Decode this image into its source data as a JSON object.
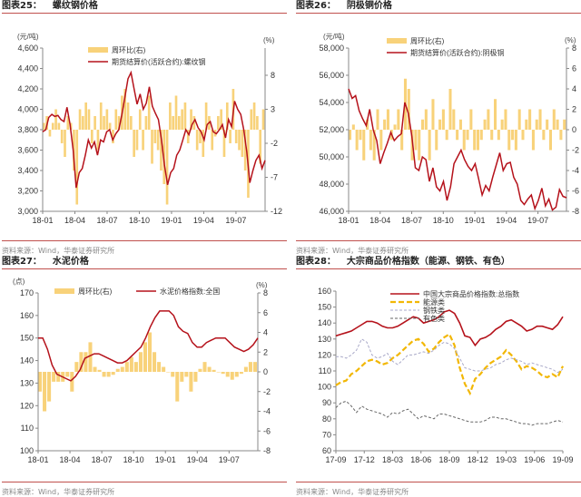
{
  "source_text": "资料来源：Wind，华泰证券研究所",
  "colors": {
    "bar": "#f8d27a",
    "line": "#b5121b",
    "energy": "#f2b705",
    "steel": "#a9a9c8",
    "nonferrous": "#666666",
    "rule": "#c0504d"
  },
  "chart_data": [
    {
      "id": "c25",
      "type": "bar+line",
      "fig": "图表25：",
      "title": "螺纹钢价格",
      "left_unit": "(元/吨)",
      "right_unit": "(%)",
      "legend": [
        "周环比(右)",
        "期货结算价(活跃合约):螺纹钢"
      ],
      "ylim": [
        3000,
        4600
      ],
      "yticks": [
        "3,000",
        "3,200",
        "3,400",
        "3,600",
        "3,800",
        "4,000",
        "4,200",
        "4,400",
        "4,600"
      ],
      "y2lim": [
        -12,
        12
      ],
      "y2ticks": [
        "-12",
        "-7",
        "-2",
        "3",
        "8"
      ],
      "y2tickvals": [
        -12,
        -7,
        -2,
        3,
        8
      ],
      "xticks": [
        "18-01",
        "18-04",
        "18-07",
        "18-10",
        "19-01",
        "19-04",
        "19-07"
      ],
      "line": [
        3780,
        3800,
        3920,
        3950,
        3930,
        3940,
        3900,
        3880,
        4020,
        3850,
        3600,
        3230,
        3380,
        3420,
        3550,
        3700,
        3620,
        3680,
        3550,
        3700,
        3680,
        3780,
        3800,
        3700,
        3760,
        3800,
        3950,
        4120,
        4300,
        4360,
        4200,
        4050,
        4150,
        4000,
        4060,
        4220,
        4030,
        3960,
        3900,
        3700,
        3450,
        3260,
        3380,
        3420,
        3550,
        3600,
        3700,
        3800,
        3750,
        3850,
        3900,
        3820,
        3780,
        3700,
        3850,
        3880,
        3780,
        3760,
        3800,
        3850,
        3720,
        3900,
        3830,
        4080,
        4000,
        3950,
        3800,
        3580,
        3280,
        3400,
        3500,
        3550,
        3420,
        3500
      ],
      "bars": [
        1,
        2,
        -1,
        1,
        3,
        1,
        -2,
        -4,
        2,
        1,
        -6,
        -11,
        3,
        2,
        4,
        3,
        -2,
        2,
        -3,
        4,
        2,
        3,
        1,
        -2,
        3,
        2,
        5,
        6,
        4,
        2,
        -4,
        -3,
        3,
        -3,
        2,
        5,
        -5,
        -2,
        -3,
        -6,
        -8,
        -11,
        4,
        2,
        5,
        2,
        3,
        4,
        -2,
        3,
        2,
        -3,
        -2,
        -4,
        4,
        2,
        -3,
        -1,
        2,
        3,
        -4,
        4,
        -2,
        6,
        -2,
        -3,
        -4,
        -6,
        -10,
        3,
        4,
        2,
        -5,
        3
      ]
    },
    {
      "id": "c26",
      "type": "bar+line",
      "fig": "图表26：",
      "title": "阴极铜价格",
      "left_unit": "(元/吨)",
      "right_unit": "(%)",
      "legend": [
        "周环比(右)",
        "期货结算价(活跃合约):阴极铜"
      ],
      "ylim": [
        46000,
        58000
      ],
      "yticks": [
        "46,000",
        "48,000",
        "50,000",
        "52,000",
        "54,000",
        "56,000",
        "58,000"
      ],
      "y2lim": [
        -8,
        8
      ],
      "y2ticks": [
        "-8",
        "-6",
        "-4",
        "-2",
        "0",
        "2",
        "4",
        "6",
        "8"
      ],
      "y2tickvals": [
        -8,
        -6,
        -4,
        -2,
        0,
        2,
        4,
        6,
        8
      ],
      "xticks": [
        "18-01",
        "18-04",
        "18-07",
        "18-10",
        "19-01",
        "19-04",
        "19-07"
      ],
      "line": [
        55000,
        54300,
        54500,
        53400,
        52800,
        52300,
        53500,
        52000,
        51200,
        49500,
        50300,
        51000,
        51800,
        51200,
        51500,
        51700,
        54000,
        53200,
        51500,
        49200,
        49000,
        50000,
        49800,
        48200,
        49200,
        47800,
        47500,
        48200,
        46800,
        47800,
        49500,
        50000,
        50500,
        49800,
        49300,
        49000,
        49500,
        48400,
        47200,
        47900,
        47500,
        48500,
        49400,
        50300,
        49000,
        49500,
        49600,
        48500,
        48000,
        46800,
        46500,
        46900,
        47200,
        46200,
        46800,
        47700,
        46400,
        46900,
        46100,
        46300,
        47600,
        47100,
        47000
      ],
      "bars": [
        -1,
        0.5,
        -2,
        -1,
        -3,
        1,
        -2,
        -3,
        2,
        -2,
        1,
        2,
        -1,
        0.5,
        2,
        -2,
        5,
        4,
        -3,
        -2,
        -3,
        1,
        2,
        -3,
        3,
        -2,
        1,
        2,
        -1,
        4,
        2,
        -1,
        1,
        -2,
        -1,
        2,
        -2,
        -2,
        -1,
        1,
        2,
        -1,
        3,
        -1,
        1,
        2,
        -2,
        -1,
        -2,
        2,
        -1,
        1,
        2,
        -2,
        1,
        2,
        -1,
        1,
        -2,
        2,
        1,
        -1,
        1
      ]
    },
    {
      "id": "c27",
      "type": "bar+line",
      "fig": "图表27：",
      "title": "水泥价格",
      "left_unit": "(点)",
      "right_unit": "(%)",
      "legend": [
        "周环比(右)",
        "水泥价格指数:全国"
      ],
      "ylim": [
        100,
        170
      ],
      "yticks": [
        "100",
        "110",
        "120",
        "130",
        "140",
        "150",
        "160",
        "170"
      ],
      "y2lim": [
        -8,
        8
      ],
      "y2ticks": [
        "-8",
        "-6",
        "-4",
        "-2",
        "0",
        "2",
        "4",
        "6",
        "8"
      ],
      "y2tickvals": [
        -8,
        -6,
        -4,
        -2,
        0,
        2,
        4,
        6,
        8
      ],
      "xticks": [
        "18-01",
        "18-04",
        "18-07",
        "18-10",
        "19-01",
        "19-04",
        "19-07"
      ],
      "line": [
        150,
        150,
        145,
        138,
        134,
        133,
        132,
        131,
        133,
        136,
        141,
        142,
        143,
        143,
        142,
        141,
        140,
        139,
        139,
        140,
        142,
        144,
        146,
        150,
        155,
        159,
        162,
        162,
        162,
        160,
        155,
        153,
        152,
        148,
        146,
        146,
        148,
        149,
        150,
        150,
        150,
        148,
        146,
        145,
        144,
        145,
        147,
        150
      ],
      "bars": [
        -2,
        -4,
        -3,
        -1,
        -1,
        -1,
        -0.5,
        -2,
        1,
        2,
        2,
        3,
        0.5,
        0.2,
        -0.5,
        -0.5,
        -0.3,
        0.3,
        0.5,
        1,
        1.5,
        1,
        2,
        3,
        4,
        2,
        1,
        0.5,
        0,
        -0.5,
        -3,
        -1,
        -0.5,
        -2,
        -1,
        0.3,
        1,
        0.5,
        0.2,
        0,
        -0.2,
        -0.5,
        -0.8,
        -0.5,
        -0.2,
        0.5,
        1,
        1
      ]
    },
    {
      "id": "c28",
      "type": "line",
      "fig": "图表28：",
      "title": "大宗商品价格指数（能源、钢铁、有色）",
      "ylim": [
        60,
        160
      ],
      "yticks": [
        "60",
        "70",
        "80",
        "90",
        "100",
        "110",
        "120",
        "130",
        "140",
        "150",
        "160"
      ],
      "xticks": [
        "17-09",
        "17-12",
        "18-03",
        "18-06",
        "18-09",
        "18-12",
        "19-03",
        "19-06",
        "19-09"
      ],
      "series": [
        {
          "name": "中国大宗商品价格指数:总指数",
          "color": "#b5121b",
          "dash": "",
          "values": [
            132,
            133,
            134,
            135,
            137,
            139,
            141,
            141,
            140,
            138,
            137,
            137,
            138,
            140,
            142,
            144,
            143,
            140,
            141,
            142,
            144,
            147,
            148,
            146,
            140,
            132,
            131,
            126,
            130,
            131,
            133,
            136,
            138,
            141,
            142,
            140,
            138,
            135,
            136,
            138,
            138,
            137,
            136,
            139,
            144
          ]
        },
        {
          "name": "能源类",
          "color": "#f2b705",
          "dash": "6,3",
          "values": [
            101,
            103,
            104,
            108,
            110,
            113,
            116,
            117,
            116,
            114,
            115,
            118,
            120,
            123,
            126,
            129,
            130,
            127,
            122,
            124,
            128,
            131,
            133,
            126,
            112,
            102,
            96,
            105,
            108,
            112,
            115,
            117,
            119,
            123,
            120,
            116,
            111,
            113,
            112,
            110,
            107,
            106,
            108,
            106,
            113
          ]
        },
        {
          "name": "钢铁类",
          "color": "#a9a9c8",
          "dash": "3,2",
          "values": [
            119,
            119,
            118,
            120,
            123,
            130,
            128,
            120,
            118,
            119,
            121,
            116,
            114,
            117,
            120,
            120,
            121,
            122,
            121,
            123,
            126,
            128,
            127,
            124,
            118,
            112,
            111,
            110,
            110,
            111,
            112,
            114,
            115,
            117,
            118,
            117,
            116,
            114,
            115,
            114,
            113,
            112,
            111,
            109,
            111
          ]
        },
        {
          "name": "有色类",
          "color": "#666666",
          "dash": "3,2",
          "values": [
            87,
            90,
            91,
            88,
            84,
            88,
            86,
            85,
            84,
            83,
            81,
            84,
            83,
            85,
            86,
            83,
            80,
            82,
            81,
            80,
            83,
            83,
            82,
            81,
            80,
            79,
            78,
            78,
            78,
            79,
            81,
            81,
            80,
            80,
            79,
            78,
            77,
            77,
            76,
            77,
            77,
            77,
            78,
            79,
            78
          ]
        }
      ]
    }
  ]
}
